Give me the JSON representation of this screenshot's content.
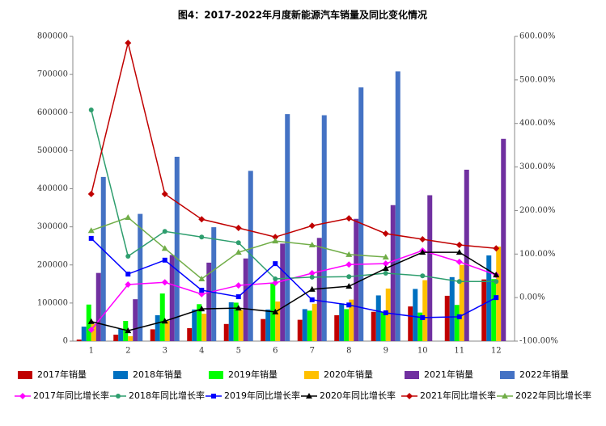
{
  "chart_data": {
    "type": "bar",
    "title": "图4：2017-2022年月度新能源汽车销量及同比变化情况",
    "categories": [
      "1",
      "2",
      "3",
      "4",
      "5",
      "6",
      "7",
      "8",
      "9",
      "10",
      "11",
      "12"
    ],
    "ylim": [
      0,
      800000
    ],
    "yticks": [
      0,
      100000,
      200000,
      300000,
      400000,
      500000,
      600000,
      700000,
      800000
    ],
    "y2lim": [
      -100,
      600
    ],
    "y2ticks": [
      {
        "value": -100,
        "label": "-100.00%"
      },
      {
        "value": 0,
        "label": "0.00%"
      },
      {
        "value": 100,
        "label": "100.00%"
      },
      {
        "value": 200,
        "label": "200.00%"
      },
      {
        "value": 300,
        "label": "300.00%"
      },
      {
        "value": 400,
        "label": "400.00%"
      },
      {
        "value": 500,
        "label": "500.00%"
      },
      {
        "value": 600,
        "label": "600.00%"
      }
    ],
    "series": [
      {
        "name": "2017年销量",
        "type": "bar",
        "color": "#c00000",
        "values": [
          4000,
          17000,
          31000,
          34000,
          45000,
          58000,
          56000,
          68000,
          77000,
          91000,
          119000,
          162000
        ]
      },
      {
        "name": "2018年销量",
        "type": "bar",
        "color": "#0070c0",
        "values": [
          38000,
          32000,
          68000,
          83000,
          102000,
          83000,
          84000,
          99000,
          120000,
          137000,
          168000,
          225000
        ]
      },
      {
        "name": "2019年销量",
        "type": "bar",
        "color": "#00ff00",
        "values": [
          96000,
          53000,
          125000,
          97000,
          101000,
          152000,
          80000,
          84000,
          76000,
          75000,
          95000,
          163000
        ]
      },
      {
        "name": "2020年销量",
        "type": "bar",
        "color": "#ffc000",
        "values": [
          45000,
          13000,
          53000,
          72000,
          82000,
          104000,
          98000,
          109000,
          138000,
          160000,
          200000,
          248000
        ]
      },
      {
        "name": "2021年销量",
        "type": "bar",
        "color": "#7030a0",
        "values": [
          179000,
          110000,
          226000,
          206000,
          217000,
          256000,
          271000,
          321000,
          357000,
          383000,
          450000,
          531000
        ]
      },
      {
        "name": "2022年销量",
        "type": "bar",
        "color": "#4472c4",
        "values": [
          431000,
          334000,
          484000,
          299000,
          447000,
          596000,
          593000,
          666000,
          708000,
          null,
          null,
          null
        ]
      },
      {
        "name": "2017年同比增长率",
        "type": "line",
        "axis": "y2",
        "marker": "diamond",
        "color": "#ff00ff",
        "values": [
          -74,
          30,
          35,
          8,
          28,
          34,
          56,
          76,
          78,
          108,
          82,
          52
        ]
      },
      {
        "name": "2018年同比增长率",
        "type": "line",
        "axis": "y2",
        "marker": "circle",
        "color": "#2e9e6e",
        "values": [
          431,
          95,
          152,
          139,
          126,
          43,
          47,
          48,
          56,
          50,
          37,
          37
        ]
      },
      {
        "name": "2019年同比增长率",
        "type": "line",
        "axis": "y2",
        "marker": "square",
        "color": "#0000ff",
        "values": [
          136,
          54,
          86,
          17,
          2,
          78,
          -5,
          -17,
          -35,
          -46,
          -44,
          0
        ]
      },
      {
        "name": "2020年同比增长率",
        "type": "line",
        "axis": "y2",
        "marker": "triangle",
        "color": "#000000",
        "values": [
          -55,
          -76,
          -54,
          -26,
          -24,
          -33,
          19,
          26,
          67,
          104,
          104,
          52
        ]
      },
      {
        "name": "2021年同比增长率",
        "type": "line",
        "axis": "y2",
        "marker": "diamond",
        "color": "#c00000",
        "values": [
          238,
          585,
          238,
          180,
          160,
          139,
          165,
          182,
          147,
          134,
          121,
          113
        ]
      },
      {
        "name": "2022年同比增长率",
        "type": "line",
        "axis": "y2",
        "marker": "triangle",
        "color": "#70ad47",
        "values": [
          154,
          184,
          113,
          43,
          104,
          130,
          121,
          99,
          93,
          null,
          null,
          null
        ]
      }
    ]
  }
}
